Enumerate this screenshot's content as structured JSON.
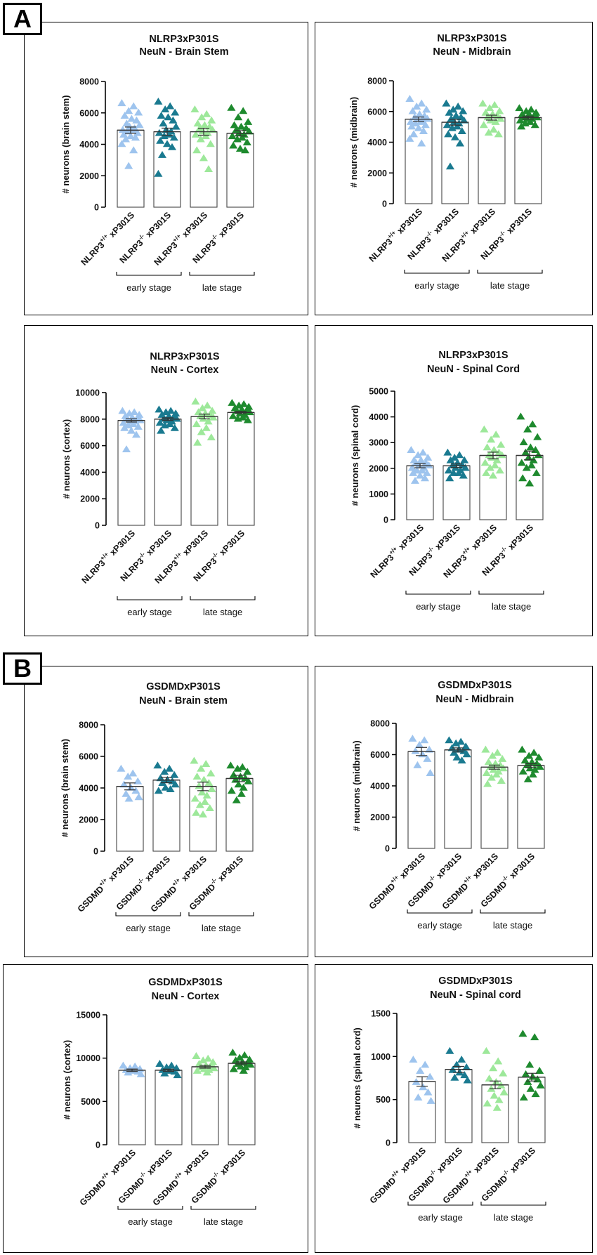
{
  "panel_labels": [
    "A",
    "B"
  ],
  "stage_labels": [
    "early stage",
    "late stage"
  ],
  "colors": [
    "#9ec4ee",
    "#1a7a90",
    "#9de89a",
    "#1e8a2e"
  ],
  "chart_data": [
    {
      "type": "bar",
      "panel": "A",
      "title": [
        "NLRP3xP301S",
        "NeuN - Brain Stem"
      ],
      "ylabel": "# neurons (brain stem)",
      "ylim": [
        0,
        8000
      ],
      "yticks": [
        0,
        2000,
        4000,
        6000,
        8000
      ],
      "categories": [
        {
          "prefix": "NLRP3",
          "sup": "+/+",
          "suffix": " xP301S"
        },
        {
          "prefix": "NLRP3",
          "sup": "-/-",
          "suffix": " xP301S"
        },
        {
          "prefix": "NLRP3",
          "sup": "+/+",
          "suffix": " xP301S"
        },
        {
          "prefix": "NLRP3",
          "sup": "-/-",
          "suffix": " xP301S"
        }
      ],
      "values": [
        4900,
        4800,
        4800,
        4700
      ],
      "sem": [
        200,
        230,
        220,
        170
      ],
      "markers": [
        "triangle",
        "triangle",
        "triangle",
        "triangle"
      ],
      "points": [
        [
          6600,
          6400,
          6100,
          6000,
          5800,
          5600,
          5500,
          5300,
          5200,
          5100,
          5000,
          4900,
          4900,
          4800,
          4700,
          4600,
          4500,
          4400,
          4300,
          4000,
          3600,
          2600
        ],
        [
          6700,
          6400,
          6200,
          6000,
          5800,
          5700,
          5500,
          5300,
          5100,
          4900,
          4800,
          4700,
          4600,
          4500,
          4400,
          4200,
          4000,
          3800,
          3300,
          2100
        ],
        [
          6200,
          5900,
          5700,
          5500,
          5300,
          5200,
          5100,
          5000,
          4900,
          4800,
          4700,
          4600,
          4500,
          4300,
          4000,
          3600,
          3100,
          2400
        ],
        [
          6300,
          6100,
          5700,
          5400,
          5200,
          5100,
          5000,
          4900,
          4800,
          4700,
          4600,
          4500,
          4400,
          4300,
          4100,
          3900,
          3700,
          3600
        ]
      ]
    },
    {
      "type": "bar",
      "panel": "A",
      "title": [
        "NLRP3xP301S",
        "NeuN - Midbrain"
      ],
      "ylabel": "# neurons (midbrain)",
      "ylim": [
        0,
        8000
      ],
      "yticks": [
        0,
        2000,
        4000,
        6000,
        8000
      ],
      "categories": [
        {
          "prefix": "NLRP3",
          "sup": "+/+",
          "suffix": " xP301S"
        },
        {
          "prefix": "NLRP3",
          "sup": "-/-",
          "suffix": " xP301S"
        },
        {
          "prefix": "NLRP3",
          "sup": "+/+",
          "suffix": " xP301S"
        },
        {
          "prefix": "NLRP3",
          "sup": "-/-",
          "suffix": " xP301S"
        }
      ],
      "values": [
        5500,
        5300,
        5600,
        5600
      ],
      "sem": [
        140,
        190,
        160,
        100
      ],
      "markers": [
        "triangle",
        "triangle",
        "triangle",
        "triangle"
      ],
      "points": [
        [
          6800,
          6500,
          6300,
          6100,
          6000,
          5800,
          5700,
          5600,
          5500,
          5500,
          5400,
          5300,
          5300,
          5200,
          5100,
          5000,
          4900,
          4700,
          4500,
          4200,
          3900
        ],
        [
          6500,
          6300,
          6100,
          6000,
          5900,
          5700,
          5600,
          5500,
          5400,
          5300,
          5200,
          5100,
          5000,
          4900,
          4700,
          4500,
          4300,
          3900,
          2400
        ],
        [
          6500,
          6400,
          6200,
          6000,
          5900,
          5800,
          5700,
          5600,
          5500,
          5400,
          5300,
          5100,
          4800,
          4600,
          4500
        ],
        [
          6200,
          6100,
          6000,
          5900,
          5800,
          5800,
          5700,
          5600,
          5600,
          5500,
          5500,
          5400,
          5300,
          5200,
          5100,
          5000
        ]
      ]
    },
    {
      "type": "bar",
      "panel": "A",
      "title": [
        "NLRP3xP301S",
        "NeuN - Cortex"
      ],
      "ylabel": "# neurons (cortex)",
      "ylim": [
        0,
        10000
      ],
      "yticks": [
        0,
        2000,
        4000,
        6000,
        8000,
        10000
      ],
      "categories": [
        {
          "prefix": "NLRP3",
          "sup": "+/+",
          "suffix": " xP301S"
        },
        {
          "prefix": "NLRP3",
          "sup": "-/-",
          "suffix": " xP301S"
        },
        {
          "prefix": "NLRP3",
          "sup": "+/+",
          "suffix": " xP301S"
        },
        {
          "prefix": "NLRP3",
          "sup": "-/-",
          "suffix": " xP301S"
        }
      ],
      "values": [
        7900,
        8000,
        8200,
        8500
      ],
      "sem": [
        120,
        100,
        180,
        90
      ],
      "markers": [
        "triangle",
        "triangle",
        "triangle",
        "triangle"
      ],
      "points": [
        [
          8600,
          8500,
          8400,
          8300,
          8200,
          8100,
          8000,
          8000,
          7900,
          7800,
          7800,
          7700,
          7600,
          7500,
          7400,
          7300,
          7100,
          6800,
          5700
        ],
        [
          8700,
          8600,
          8500,
          8400,
          8300,
          8200,
          8100,
          8000,
          8000,
          7900,
          7800,
          7700,
          7600,
          7500,
          7300,
          7100
        ],
        [
          9300,
          9000,
          8800,
          8600,
          8500,
          8400,
          8300,
          8200,
          8100,
          8000,
          7800,
          7600,
          7300,
          7000,
          6600,
          6200
        ],
        [
          9200,
          9100,
          9000,
          8900,
          8800,
          8700,
          8600,
          8600,
          8500,
          8400,
          8300,
          8200,
          8100,
          8000,
          7900
        ]
      ]
    },
    {
      "type": "bar",
      "panel": "A",
      "title": [
        "NLRP3xP301S",
        "NeuN - Spinal Cord"
      ],
      "ylabel": "# neurons (spinal cord)",
      "ylim": [
        0,
        5000
      ],
      "yticks": [
        0,
        1000,
        2000,
        3000,
        4000,
        5000
      ],
      "categories": [
        {
          "prefix": "NLRP3",
          "sup": "+/+",
          "suffix": " xP301S"
        },
        {
          "prefix": "NLRP3",
          "sup": "-/-",
          "suffix": " xP301S"
        },
        {
          "prefix": "NLRP3",
          "sup": "+/+",
          "suffix": " xP301S"
        },
        {
          "prefix": "NLRP3",
          "sup": "-/-",
          "suffix": " xP301S"
        }
      ],
      "values": [
        2100,
        2100,
        2500,
        2500
      ],
      "sem": [
        80,
        70,
        130,
        170
      ],
      "markers": [
        "triangle",
        "triangle",
        "triangle",
        "triangle"
      ],
      "points": [
        [
          2700,
          2600,
          2500,
          2400,
          2300,
          2300,
          2200,
          2200,
          2100,
          2100,
          2000,
          2000,
          1900,
          1900,
          1800,
          1800,
          1700,
          1600,
          1500
        ],
        [
          2600,
          2500,
          2400,
          2300,
          2300,
          2200,
          2100,
          2100,
          2000,
          2000,
          1900,
          1900,
          1800,
          1800,
          1700,
          1600
        ],
        [
          3500,
          3300,
          3100,
          2900,
          2800,
          2700,
          2600,
          2500,
          2500,
          2400,
          2300,
          2200,
          2100,
          2000,
          1900,
          1800,
          1700
        ],
        [
          4000,
          3700,
          3500,
          3200,
          3000,
          2800,
          2700,
          2600,
          2500,
          2400,
          2300,
          2200,
          2100,
          2000,
          1800,
          1600,
          1400
        ]
      ]
    },
    {
      "type": "bar",
      "panel": "B",
      "title": [
        "GSDMDxP301S",
        "NeuN - Brain stem"
      ],
      "ylabel": "# neurons (brain stem)",
      "ylim": [
        0,
        8000
      ],
      "yticks": [
        0,
        2000,
        4000,
        6000,
        8000
      ],
      "categories": [
        {
          "prefix": "GSDMD",
          "sup": "+/+",
          "suffix": " xP301S"
        },
        {
          "prefix": "GSDMD",
          "sup": "-/-",
          "suffix": " xP301S"
        },
        {
          "prefix": "GSDMD",
          "sup": "+/+",
          "suffix": " xP301S"
        },
        {
          "prefix": "GSDMD",
          "sup": "-/-",
          "suffix": " xP301S"
        }
      ],
      "values": [
        4100,
        4500,
        4100,
        4600
      ],
      "sem": [
        220,
        170,
        270,
        200
      ],
      "markers": [
        "triangle",
        "triangle",
        "triangle",
        "triangle"
      ],
      "points": [
        [
          5200,
          4900,
          4700,
          4400,
          4200,
          4000,
          3800,
          3600,
          3400,
          3300
        ],
        [
          5400,
          5200,
          5000,
          4800,
          4600,
          4500,
          4400,
          4300,
          4200,
          4000,
          3900,
          3800
        ],
        [
          5700,
          5500,
          5200,
          4900,
          4700,
          4500,
          4300,
          4100,
          3900,
          3700,
          3500,
          3300,
          3100,
          2900,
          2700,
          2400,
          2300
        ],
        [
          5400,
          5300,
          5200,
          5000,
          4800,
          4700,
          4600,
          4500,
          4400,
          4200,
          4000,
          3800,
          3600,
          3200
        ]
      ]
    },
    {
      "type": "bar",
      "panel": "B",
      "title": [
        "GSDMDxP301S",
        "NeuN - Midbrain"
      ],
      "ylabel": "# neurons (midbrain)",
      "ylim": [
        0,
        8000
      ],
      "yticks": [
        0,
        2000,
        4000,
        6000,
        8000
      ],
      "categories": [
        {
          "prefix": "GSDMD",
          "sup": "+/+",
          "suffix": " xP301S"
        },
        {
          "prefix": "GSDMD",
          "sup": "-/-",
          "suffix": " xP301S"
        },
        {
          "prefix": "GSDMD",
          "sup": "+/+",
          "suffix": " xP301S"
        },
        {
          "prefix": "GSDMD",
          "sup": "-/-",
          "suffix": " xP301S"
        }
      ],
      "values": [
        6200,
        6300,
        5200,
        5300
      ],
      "sem": [
        260,
        130,
        130,
        120
      ],
      "markers": [
        "triangle",
        "triangle",
        "triangle",
        "triangle"
      ],
      "points": [
        [
          7000,
          6900,
          6600,
          6300,
          6200,
          6000,
          5700,
          5300,
          4800
        ],
        [
          6900,
          6800,
          6700,
          6500,
          6400,
          6300,
          6200,
          6100,
          6000,
          5800,
          5600
        ],
        [
          6300,
          6100,
          5900,
          5700,
          5500,
          5400,
          5300,
          5200,
          5100,
          5000,
          4900,
          4800,
          4700,
          4500,
          4300,
          4100
        ],
        [
          6300,
          6100,
          5900,
          5800,
          5600,
          5500,
          5400,
          5300,
          5200,
          5100,
          5000,
          4900,
          4700,
          4400
        ]
      ]
    },
    {
      "type": "bar",
      "panel": "B",
      "title": [
        "GSDMDxP301S",
        "NeuN - Cortex"
      ],
      "ylabel": "# neurons (cortex)",
      "ylim": [
        0,
        15000
      ],
      "yticks": [
        0,
        5000,
        10000,
        15000
      ],
      "categories": [
        {
          "prefix": "GSDMD",
          "sup": "+/+",
          "suffix": " xP301S"
        },
        {
          "prefix": "GSDMD",
          "sup": "-/-",
          "suffix": " xP301S"
        },
        {
          "prefix": "GSDMD",
          "sup": "+/+",
          "suffix": " xP301S"
        },
        {
          "prefix": "GSDMD",
          "sup": "-/-",
          "suffix": " xP301S"
        }
      ],
      "values": [
        8600,
        8600,
        9000,
        9400
      ],
      "sem": [
        140,
        130,
        160,
        170
      ],
      "markers": [
        "triangle",
        "triangle",
        "triangle",
        "triangle"
      ],
      "points": [
        [
          9100,
          9000,
          8800,
          8700,
          8600,
          8500,
          8400,
          8300,
          8100
        ],
        [
          9300,
          9100,
          8900,
          8800,
          8600,
          8500,
          8400,
          8200,
          8000
        ],
        [
          10200,
          9900,
          9700,
          9500,
          9300,
          9100,
          9000,
          8900,
          8800,
          8700,
          8600,
          8500,
          8300
        ],
        [
          10600,
          10300,
          10000,
          9800,
          9700,
          9500,
          9400,
          9300,
          9200,
          9000,
          8900,
          8700,
          8500
        ]
      ]
    },
    {
      "type": "bar",
      "panel": "B",
      "title": [
        "GSDMDxP301S",
        "NeuN - Spinal cord"
      ],
      "ylabel": "# neurons (spinal cord)",
      "ylim": [
        0,
        1500
      ],
      "yticks": [
        0,
        500,
        1000,
        1500
      ],
      "categories": [
        {
          "prefix": "GSDMD",
          "sup": "+/+",
          "suffix": " xP301S"
        },
        {
          "prefix": "GSDMD",
          "sup": "-/-",
          "suffix": " xP301S"
        },
        {
          "prefix": "GSDMD",
          "sup": "+/+",
          "suffix": " xP301S"
        },
        {
          "prefix": "GSDMD",
          "sup": "-/-",
          "suffix": " xP301S"
        }
      ],
      "values": [
        710,
        850,
        670,
        760
      ],
      "sem": [
        55,
        35,
        45,
        45
      ],
      "markers": [
        "triangle",
        "triangle",
        "triangle",
        "triangle"
      ],
      "points": [
        [
          960,
          900,
          830,
          760,
          700,
          640,
          580,
          520,
          480
        ],
        [
          1060,
          960,
          900,
          870,
          840,
          810,
          780,
          750,
          720
        ],
        [
          1060,
          940,
          860,
          800,
          740,
          700,
          660,
          620,
          580,
          540,
          490,
          450,
          400
        ],
        [
          1260,
          1220,
          900,
          830,
          790,
          760,
          730,
          700,
          660,
          620,
          560,
          520
        ]
      ]
    }
  ]
}
